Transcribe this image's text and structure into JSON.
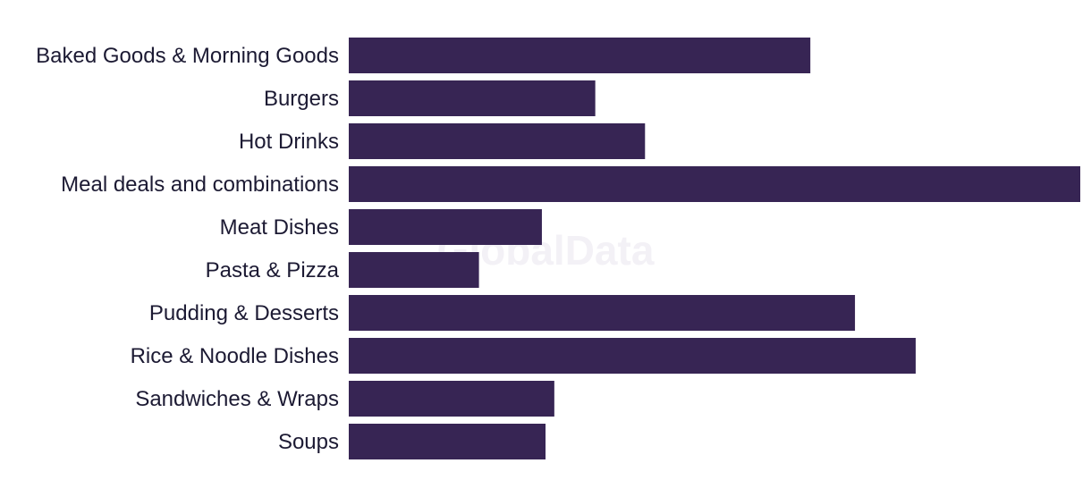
{
  "watermark": "GlobalData",
  "colors": {
    "bar": "#372554",
    "label": "#1c1a33",
    "watermark": "#f3f1f6"
  },
  "chart_data": {
    "type": "bar",
    "orientation": "horizontal",
    "categories": [
      "Baked Goods & Morning Goods",
      "Burgers",
      "Hot Drinks",
      "Meal deals and combinations",
      "Meat Dishes",
      "Pasta & Pizza",
      "Pudding & Desserts",
      "Rice & Noodle Dishes",
      "Sandwiches & Wraps",
      "Soups"
    ],
    "values": [
      63.1,
      33.7,
      40.5,
      100,
      26.4,
      17.8,
      69.2,
      77.5,
      28.1,
      26.9
    ],
    "xlim": [
      0,
      100
    ],
    "grid": false,
    "legend": "none"
  }
}
